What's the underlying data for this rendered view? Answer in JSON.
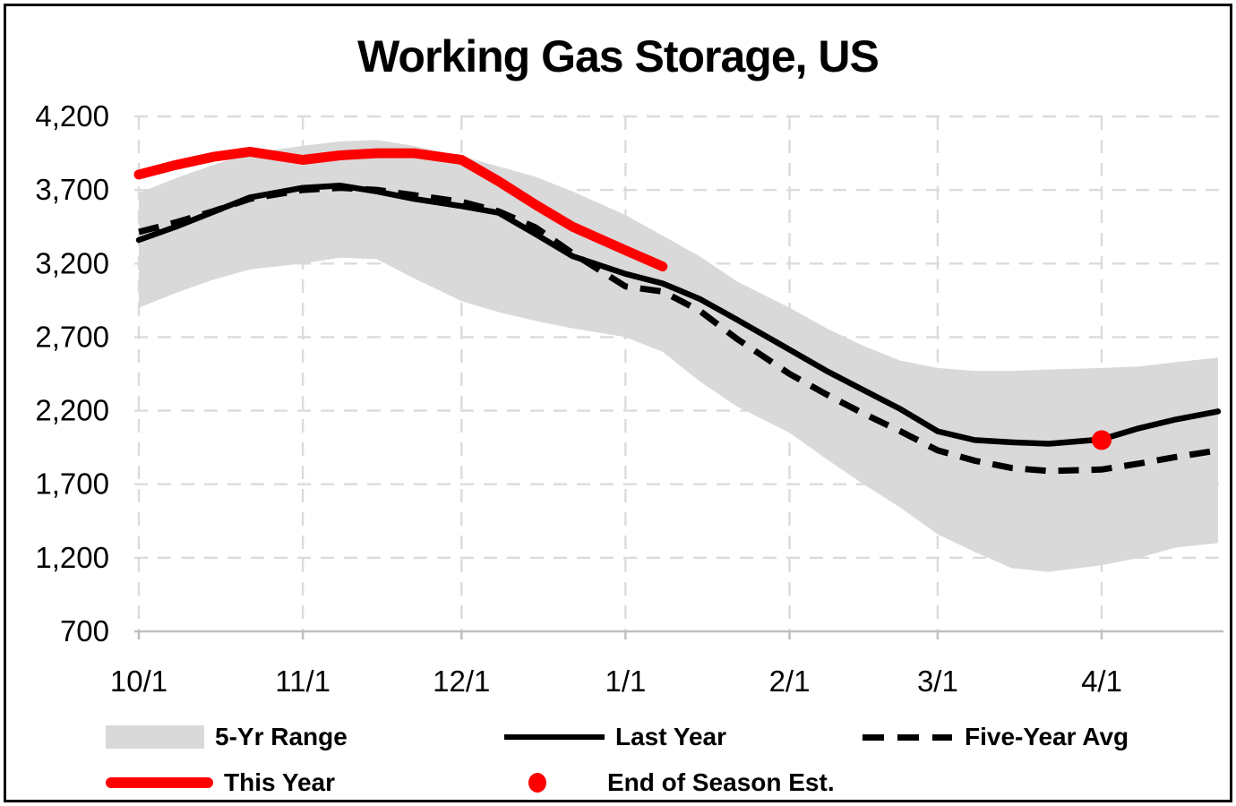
{
  "title": "Working Gas Storage, US",
  "colors": {
    "this_year": "#FE0000",
    "estimate_dot": "#FE0000",
    "band": "#D9D9D9",
    "line": "#000000",
    "gridline": "#DBDBDB",
    "axis": "#BFBFBF",
    "text": "#000000"
  },
  "legend": [
    {
      "label": "5-Yr Range",
      "swatch": "gray-band"
    },
    {
      "label": "Last Year",
      "swatch": "black-solid-line"
    },
    {
      "label": "Five-Year Avg",
      "swatch": "black-dashed-line"
    },
    {
      "label": "This Year",
      "swatch": "red-thick-line"
    },
    {
      "label": "End of Season Est.",
      "swatch": "red-dot"
    }
  ],
  "chart_data": {
    "type": "line",
    "title": "Working Gas Storage, US",
    "grid": true,
    "legend_position": "bottom",
    "ylim": [
      700,
      4200
    ],
    "y_ticks": [
      4200,
      3700,
      3200,
      2700,
      2200,
      1700,
      1200,
      700
    ],
    "y_tick_labels": [
      "4,200",
      "3,700",
      "3,200",
      "2,700",
      "2,200",
      "1,700",
      "1,200",
      "700"
    ],
    "x_tick_labels": [
      "10/1",
      "11/1",
      "12/1",
      "1/1",
      "2/1",
      "3/1",
      "4/1"
    ],
    "x_tick_days": [
      0,
      31,
      61,
      92,
      123,
      151,
      182
    ],
    "dates": [
      "10/1",
      "10/8",
      "10/15",
      "10/22",
      "11/1",
      "11/8",
      "11/15",
      "11/22",
      "12/1",
      "12/8",
      "12/15",
      "12/22",
      "1/1",
      "1/8",
      "1/15",
      "1/22",
      "2/1",
      "2/8",
      "2/15",
      "2/22",
      "3/1",
      "3/8",
      "3/15",
      "3/22",
      "4/1",
      "4/8",
      "4/15",
      "4/22"
    ],
    "days": [
      0,
      7,
      14,
      21,
      31,
      38,
      45,
      52,
      61,
      68,
      75,
      82,
      92,
      99,
      106,
      113,
      123,
      130,
      137,
      144,
      151,
      158,
      165,
      172,
      182,
      189,
      196,
      204
    ],
    "series": [
      {
        "name": "5-Yr Range",
        "type": "band",
        "high": [
          3680,
          3780,
          3870,
          3950,
          4000,
          4030,
          4040,
          4000,
          3930,
          3860,
          3790,
          3690,
          3530,
          3390,
          3250,
          3080,
          2900,
          2760,
          2640,
          2540,
          2490,
          2470,
          2470,
          2480,
          2490,
          2500,
          2530,
          2560
        ],
        "low": [
          2900,
          3000,
          3090,
          3160,
          3200,
          3240,
          3230,
          3100,
          2945,
          2870,
          2810,
          2760,
          2700,
          2600,
          2400,
          2230,
          2050,
          1870,
          1700,
          1540,
          1360,
          1240,
          1130,
          1105,
          1150,
          1200,
          1270,
          1300
        ]
      },
      {
        "name": "Last Year",
        "type": "line",
        "style": "solid",
        "values": [
          3360,
          3450,
          3550,
          3650,
          3715,
          3730,
          3690,
          3640,
          3590,
          3545,
          3400,
          3250,
          3130,
          3065,
          2960,
          2820,
          2615,
          2470,
          2340,
          2210,
          2060,
          2000,
          1985,
          1975,
          2005,
          2080,
          2140,
          2195
        ]
      },
      {
        "name": "Five-Year Avg",
        "type": "line",
        "style": "dashed",
        "values": [
          3415,
          3480,
          3555,
          3640,
          3700,
          3715,
          3700,
          3665,
          3620,
          3555,
          3445,
          3270,
          3045,
          3010,
          2880,
          2690,
          2450,
          2310,
          2180,
          2060,
          1930,
          1860,
          1810,
          1790,
          1800,
          1840,
          1885,
          1930
        ]
      },
      {
        "name": "This Year",
        "type": "line",
        "style": "thick-red",
        "values": [
          3805,
          3870,
          3925,
          3960,
          3905,
          3935,
          3950,
          3950,
          3905,
          3760,
          3600,
          3450,
          3290,
          3180,
          null,
          null,
          null,
          null,
          null,
          null,
          null,
          null,
          null,
          null,
          null,
          null,
          null,
          null
        ]
      },
      {
        "name": "End of Season Est.",
        "type": "point",
        "date": "4/1",
        "day": 182,
        "value": 2000
      }
    ]
  }
}
